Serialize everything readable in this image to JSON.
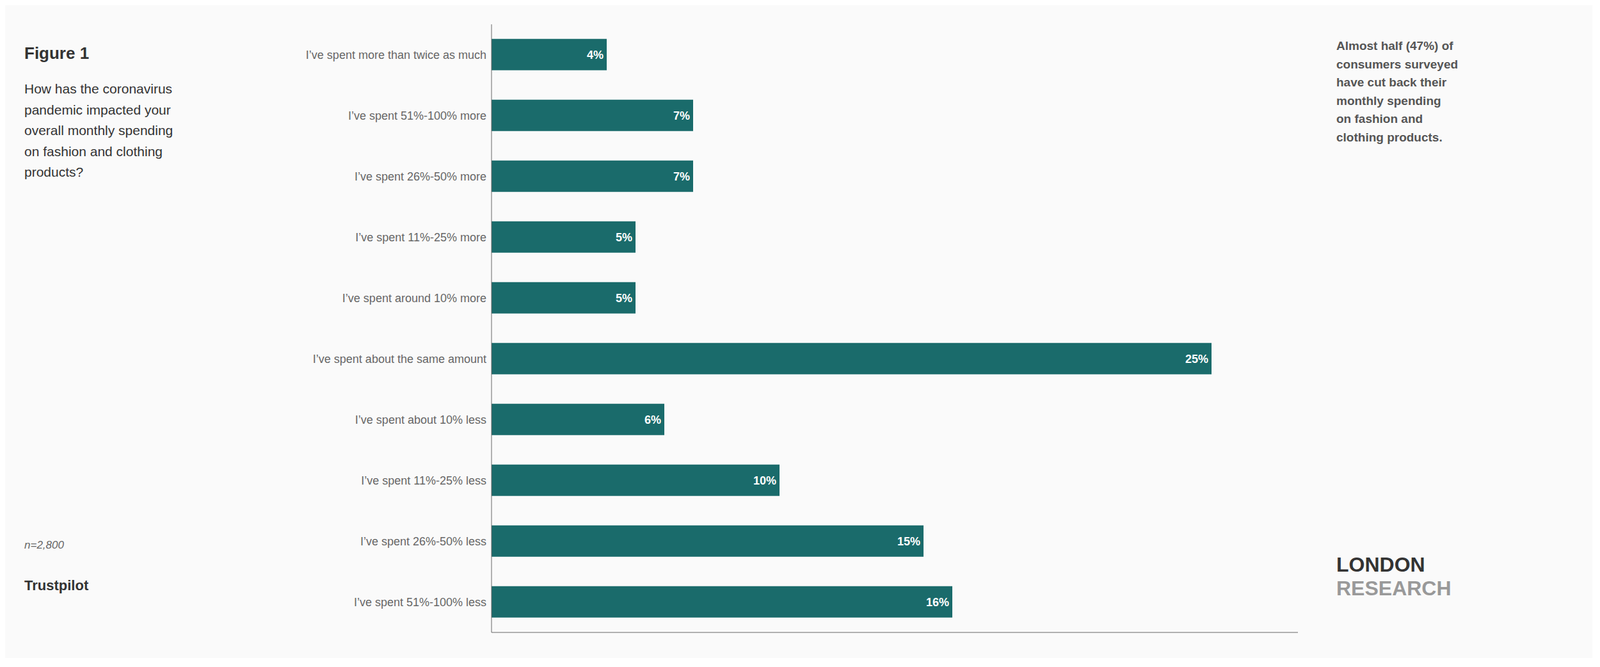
{
  "chart_data": {
    "type": "bar",
    "orientation": "horizontal",
    "title": "Figure 1",
    "subtitle": "How has the coronavirus\npandemic impacted your\noverall monthly spending\non fashion and clothing\nproducts?",
    "categories": [
      "I’ve spent more than twice as much",
      "I’ve spent 51%-100% more",
      "I’ve spent 26%-50% more",
      "I’ve spent 11%-25% more",
      "I’ve spent around 10% more",
      "I’ve spent about the same amount",
      "I’ve spent about 10% less",
      "I’ve spent 11%-25% less",
      "I’ve spent 26%-50% less",
      "I’ve spent 51%-100% less"
    ],
    "values": [
      4,
      7,
      7,
      5,
      5,
      25,
      6,
      10,
      15,
      16
    ],
    "value_labels": [
      "4%",
      "7%",
      "7%",
      "5%",
      "5%",
      "25%",
      "6%",
      "10%",
      "15%",
      "16%"
    ],
    "color": "#1a6b6b",
    "xlim": [
      0,
      28
    ],
    "data_labels": true,
    "tick_labels": "y",
    "grid": false,
    "annotations": [
      "n=2,800",
      "Trustpilot",
      "Almost half (47%) of\nconsumers surveyed\nhave cut back their\nmonthly spending\non fashion and\nclothing products.",
      "LONDON",
      "RESEARCH"
    ]
  }
}
